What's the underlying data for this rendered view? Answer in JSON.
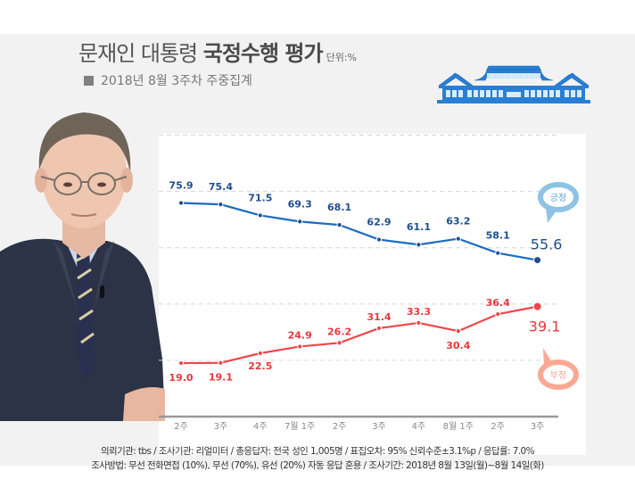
{
  "header": {
    "title_normal": "문재인 대통령 ",
    "title_bold": "국정수행 평가",
    "unit": "단위:%",
    "subtitle": "2018년 8월 3주차 주중집계"
  },
  "legend": {
    "positive": "긍정",
    "negative": "부정"
  },
  "colors": {
    "positive_line": "#1a6bbf",
    "positive_text": "#1f4e8c",
    "negative_line": "#f0454a",
    "negative_text": "#e8373d",
    "positive_bubble": "#8ec3e6",
    "negative_bubble": "#f9a993",
    "background": "#f2f2f2",
    "building": "#2a7fd4"
  },
  "footer": {
    "line1": "의뢰기관: tbs / 조사기관: 리얼미터 / 총응답자: 전국 성인 1,005명 / 표집오차: 95% 신뢰수준±3.1%p / 응답률: 7.0%",
    "line2": "조사방법: 무선 전화면접 (10%), 무선 (70%), 유선 (20%) 자동 응답 혼용 / 조사기간: 2018년 8월 13일(월)~8월 14일(화)"
  },
  "chart_data": {
    "type": "line",
    "title": "문재인 대통령 국정수행 평가",
    "subtitle": "2018년 8월 3주차 주중집계",
    "unit": "%",
    "categories": [
      "2주",
      "3주",
      "4주",
      "7월 1주",
      "2주",
      "3주",
      "4주",
      "8월 1주",
      "2주",
      "3주"
    ],
    "series": [
      {
        "name": "긍정",
        "values": [
          75.9,
          75.4,
          71.5,
          69.3,
          68.1,
          62.9,
          61.1,
          63.2,
          58.1,
          55.6
        ]
      },
      {
        "name": "부정",
        "values": [
          19.0,
          19.1,
          22.5,
          24.9,
          26.2,
          31.4,
          33.3,
          30.4,
          36.4,
          39.1
        ]
      }
    ],
    "labels": {
      "긍정": [
        "75.9",
        "75.4",
        "71.5",
        "69.3",
        "68.1",
        "62.9",
        "61.1",
        "63.2",
        "58.1",
        "55.6"
      ],
      "부정": [
        "19.0",
        "19.1",
        "22.5",
        "24.9",
        "26.2",
        "31.4",
        "33.3",
        "30.4",
        "36.4",
        "39.1"
      ]
    },
    "xlabel": "",
    "ylabel": "",
    "ylim": [
      0,
      100
    ],
    "gridlines": [
      20,
      40,
      60,
      80,
      100
    ],
    "grid": true,
    "legend_position": "right (speech bubbles)"
  }
}
